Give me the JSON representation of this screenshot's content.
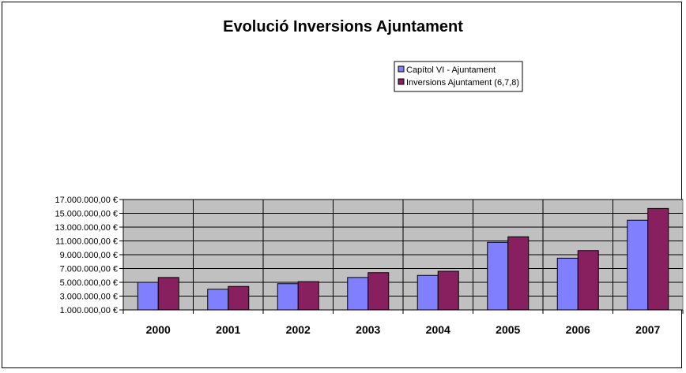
{
  "chart_data": {
    "type": "bar",
    "title": "Evolució Inversions Ajuntament",
    "xlabel": "",
    "ylabel": "",
    "categories": [
      "2000",
      "2001",
      "2002",
      "2003",
      "2004",
      "2005",
      "2006",
      "2007"
    ],
    "series": [
      {
        "name": "Capítol VI - Ajuntament",
        "color": "#8080ff",
        "values": [
          5000000,
          4000000,
          4800000,
          5700000,
          6000000,
          10800000,
          8500000,
          14000000
        ]
      },
      {
        "name": "Inversions Ajuntament  (6,7,8)",
        "color": "#882060",
        "values": [
          5700000,
          4400000,
          5100000,
          6400000,
          6600000,
          11600000,
          9600000,
          15700000
        ]
      }
    ],
    "ylim": [
      1000000,
      17000000
    ],
    "yticks": [
      "1.000.000,00 €",
      "3.000.000,00 €",
      "5.000.000,00 €",
      "7.000.000,00 €",
      "9.000.000,00 €",
      "11.000.000,00 €",
      "13.000.000,00 €",
      "15.000.000,00 €",
      "17.000.000,00 €"
    ],
    "ytick_values": [
      1000000,
      3000000,
      5000000,
      7000000,
      9000000,
      11000000,
      13000000,
      15000000,
      17000000
    ],
    "grid": true,
    "plot_background": "#c0c0c0",
    "legend_position": "top-right"
  }
}
